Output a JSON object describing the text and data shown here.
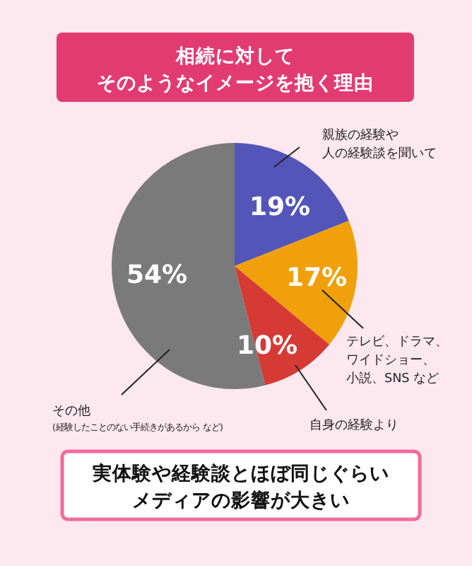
{
  "chart_data": {
    "type": "pie",
    "title": "相続に対してそのようなイメージを抱く理由",
    "categories": [
      "親族の経験や人の経験談を聞いて",
      "テレビ、ドラマ、ワイドショー、小説、SNS など",
      "自身の経験より",
      "その他$_{(経験したことのない手続きがあるから など)}$"
    ],
    "values": [
      19,
      17,
      10,
      54
    ],
    "value_labels": [
      "19%",
      "17%",
      "10%",
      "54%"
    ],
    "colors": [
      "#5356b8",
      "#f0a00a",
      "#d63a35",
      "#7a7a7a"
    ],
    "annotations": [
      "実体験や経験談とほぼ同じぐらいメディアの影響が大きい"
    ]
  }
}
